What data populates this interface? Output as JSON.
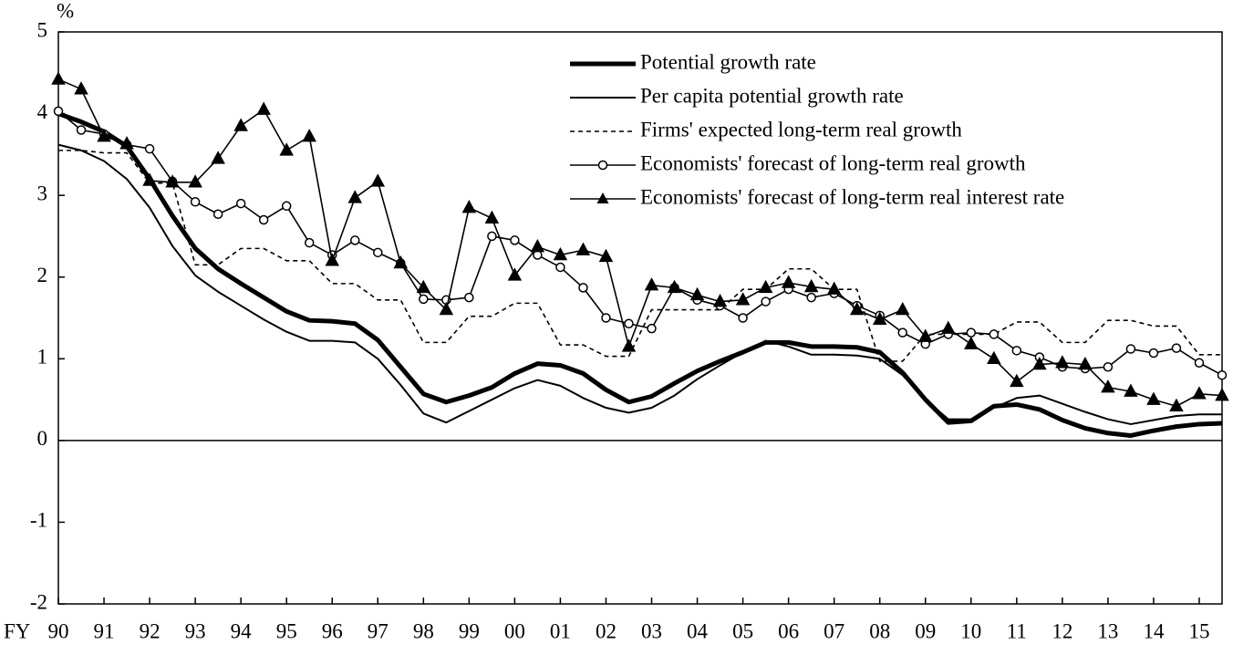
{
  "chart_data": {
    "type": "line",
    "ylabel": "%",
    "xlabel": "FY",
    "x": [
      1990,
      1990.5,
      1991,
      1991.5,
      1992,
      1992.5,
      1993,
      1993.5,
      1994,
      1994.5,
      1995,
      1995.5,
      1996,
      1996.5,
      1997,
      1997.5,
      1998,
      1998.5,
      1999,
      1999.5,
      2000,
      2000.5,
      2001,
      2001.5,
      2002,
      2002.5,
      2003,
      2003.5,
      2004,
      2004.5,
      2005,
      2005.5,
      2006,
      2006.5,
      2007,
      2007.5,
      2008,
      2008.5,
      2009,
      2009.5,
      2010,
      2010.5,
      2011,
      2011.5,
      2012,
      2012.5,
      2013,
      2013.5,
      2014,
      2014.5,
      2015,
      2015.5
    ],
    "xlim": [
      1990,
      2015.5
    ],
    "xticks": [
      {
        "value": 1990,
        "label": "90"
      },
      {
        "value": 1991,
        "label": "91"
      },
      {
        "value": 1992,
        "label": "92"
      },
      {
        "value": 1993,
        "label": "93"
      },
      {
        "value": 1994,
        "label": "94"
      },
      {
        "value": 1995,
        "label": "95"
      },
      {
        "value": 1996,
        "label": "96"
      },
      {
        "value": 1997,
        "label": "97"
      },
      {
        "value": 1998,
        "label": "98"
      },
      {
        "value": 1999,
        "label": "99"
      },
      {
        "value": 2000,
        "label": "00"
      },
      {
        "value": 2001,
        "label": "01"
      },
      {
        "value": 2002,
        "label": "02"
      },
      {
        "value": 2003,
        "label": "03"
      },
      {
        "value": 2004,
        "label": "04"
      },
      {
        "value": 2005,
        "label": "05"
      },
      {
        "value": 2006,
        "label": "06"
      },
      {
        "value": 2007,
        "label": "07"
      },
      {
        "value": 2008,
        "label": "08"
      },
      {
        "value": 2009,
        "label": "09"
      },
      {
        "value": 2010,
        "label": "10"
      },
      {
        "value": 2011,
        "label": "11"
      },
      {
        "value": 2012,
        "label": "12"
      },
      {
        "value": 2013,
        "label": "13"
      },
      {
        "value": 2014,
        "label": "14"
      },
      {
        "value": 2015,
        "label": "15"
      }
    ],
    "ylim": [
      -2,
      5
    ],
    "yticks": [
      -2,
      -1,
      0,
      1,
      2,
      3,
      4,
      5
    ],
    "legend": "upper right",
    "series": [
      {
        "name": "Potential growth rate",
        "color": "#000000",
        "width": 5,
        "dash": "none",
        "marker": "none",
        "values": [
          4.0,
          3.9,
          3.78,
          3.6,
          3.2,
          2.75,
          2.35,
          2.1,
          1.92,
          1.75,
          1.58,
          1.47,
          1.46,
          1.43,
          1.23,
          0.9,
          0.57,
          0.47,
          0.55,
          0.65,
          0.82,
          0.94,
          0.92,
          0.82,
          0.62,
          0.47,
          0.54,
          0.7,
          0.85,
          0.97,
          1.08,
          1.2,
          1.2,
          1.15,
          1.15,
          1.14,
          1.08,
          0.83,
          0.5,
          0.22,
          0.24,
          0.42,
          0.44,
          0.38,
          0.25,
          0.15,
          0.09,
          0.06,
          0.12,
          0.17,
          0.2,
          0.21
        ]
      },
      {
        "name": "Per capita potential growth rate",
        "color": "#000000",
        "width": 2,
        "dash": "none",
        "marker": "none",
        "values": [
          3.62,
          3.55,
          3.42,
          3.2,
          2.85,
          2.38,
          2.02,
          1.82,
          1.65,
          1.48,
          1.33,
          1.22,
          1.22,
          1.2,
          1.0,
          0.68,
          0.33,
          0.22,
          0.36,
          0.5,
          0.64,
          0.74,
          0.67,
          0.52,
          0.4,
          0.34,
          0.4,
          0.55,
          0.75,
          0.92,
          1.08,
          1.22,
          1.15,
          1.05,
          1.05,
          1.04,
          1.0,
          0.8,
          0.5,
          0.26,
          0.26,
          0.4,
          0.52,
          0.55,
          0.45,
          0.35,
          0.26,
          0.2,
          0.25,
          0.3,
          0.32,
          0.32
        ]
      },
      {
        "name": "Firms' expected long-term real growth",
        "color": "#000000",
        "width": 1.6,
        "dash": "5,4",
        "marker": "none",
        "values": [
          3.55,
          3.55,
          3.52,
          3.52,
          3.15,
          3.15,
          2.15,
          2.15,
          2.35,
          2.35,
          2.2,
          2.2,
          1.92,
          1.92,
          1.72,
          1.72,
          1.2,
          1.2,
          1.52,
          1.52,
          1.68,
          1.68,
          1.17,
          1.17,
          1.03,
          1.03,
          1.6,
          1.6,
          1.6,
          1.6,
          1.85,
          1.85,
          2.1,
          2.1,
          1.85,
          1.85,
          0.97,
          0.97,
          1.3,
          1.3,
          1.3,
          1.3,
          1.45,
          1.45,
          1.2,
          1.2,
          1.47,
          1.47,
          1.4,
          1.4,
          1.05,
          1.05
        ]
      },
      {
        "name": "Economists' forecast of long-term real growth",
        "color": "#000000",
        "width": 1.6,
        "dash": "none",
        "marker": "circle",
        "values": [
          4.03,
          3.8,
          3.75,
          3.62,
          3.57,
          3.17,
          2.92,
          2.77,
          2.9,
          2.7,
          2.87,
          2.42,
          2.27,
          2.45,
          2.3,
          2.17,
          1.73,
          1.72,
          1.75,
          2.5,
          2.45,
          2.27,
          2.12,
          1.87,
          1.5,
          1.43,
          1.37,
          1.87,
          1.72,
          1.65,
          1.5,
          1.7,
          1.85,
          1.75,
          1.8,
          1.65,
          1.53,
          1.32,
          1.18,
          1.3,
          1.32,
          1.3,
          1.1,
          1.02,
          0.9,
          0.88,
          0.9,
          1.12,
          1.07,
          1.13,
          0.95,
          0.8
        ]
      },
      {
        "name": "Economists' forecast of long-term real interest rate",
        "color": "#000000",
        "width": 1.6,
        "dash": "none",
        "marker": "triangle",
        "values": [
          4.42,
          4.3,
          3.72,
          3.63,
          3.18,
          3.16,
          3.16,
          3.45,
          3.85,
          4.05,
          3.55,
          3.72,
          2.2,
          2.97,
          3.17,
          2.17,
          1.87,
          1.6,
          2.85,
          2.72,
          2.02,
          2.37,
          2.27,
          2.33,
          2.25,
          1.15,
          1.9,
          1.87,
          1.78,
          1.7,
          1.72,
          1.87,
          1.93,
          1.88,
          1.85,
          1.6,
          1.48,
          1.6,
          1.27,
          1.37,
          1.18,
          1.0,
          0.72,
          0.93,
          0.95,
          0.93,
          0.65,
          0.6,
          0.5,
          0.42,
          0.57,
          0.55
        ]
      }
    ]
  }
}
